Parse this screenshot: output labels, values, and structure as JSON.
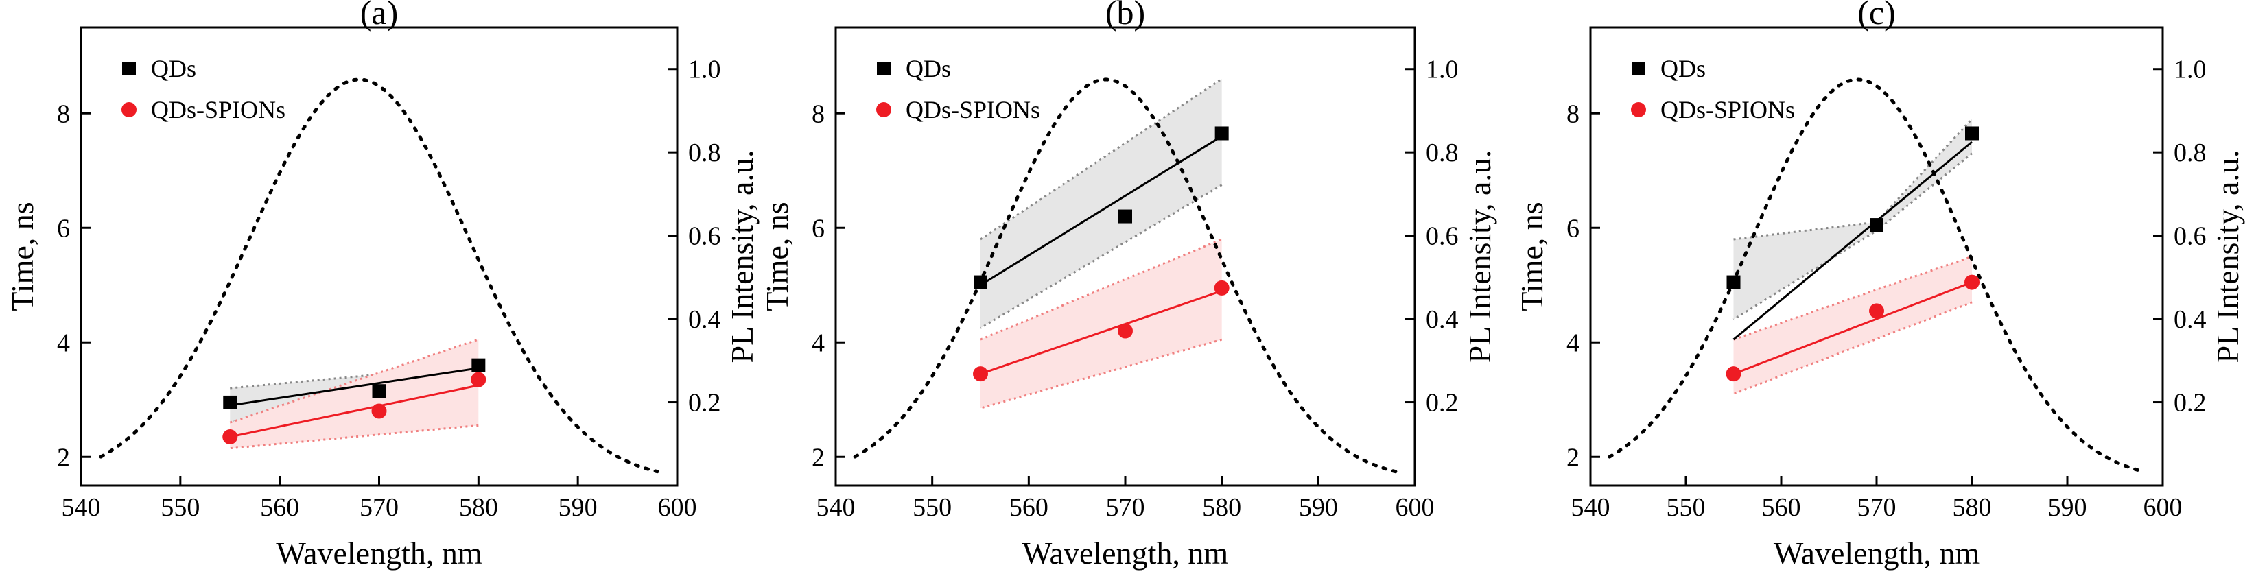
{
  "chart_data": [
    {
      "type": "line",
      "title": "(a)",
      "xlabel": "Wavelength, nm",
      "ylabel": "Time, ns",
      "y2label": "PL Intensity, a.u.",
      "xlim": [
        540,
        600
      ],
      "ylim": [
        1.5,
        9.5
      ],
      "y2lim": [
        0,
        1.1
      ],
      "xticks": [
        540,
        550,
        560,
        570,
        580,
        590,
        600
      ],
      "yticks": [
        2,
        4,
        6,
        8
      ],
      "y2ticks": [
        0.2,
        0.4,
        0.6,
        0.8,
        1.0
      ],
      "xtick_labels": [
        "540",
        "550",
        "560",
        "570",
        "580",
        "590",
        "600"
      ],
      "ytick_labels": [
        "2",
        "4",
        "6",
        "8"
      ],
      "y2tick_labels": [
        "0.2",
        "0.4",
        "0.6",
        "0.8",
        "1.0"
      ],
      "legend": [
        "QDs",
        "QDs-SPIONs"
      ],
      "legend_position": "top-left",
      "series": [
        {
          "name": "QDs",
          "x": [
            555,
            570,
            580
          ],
          "values": [
            2.95,
            3.15,
            3.6
          ],
          "fit": [
            2.9,
            3.55
          ],
          "band_upper": [
            3.2,
            3.6
          ],
          "band_lower": [
            2.6,
            3.35
          ],
          "color": "#000000",
          "band_color": "#e6e6e6",
          "band_edge": "#888888"
        },
        {
          "name": "QDs-SPIONs",
          "x": [
            555,
            570,
            580
          ],
          "values": [
            2.35,
            2.8,
            3.35
          ],
          "fit": [
            2.35,
            3.25
          ],
          "band_upper": [
            2.6,
            4.05
          ],
          "band_lower": [
            2.15,
            2.55
          ],
          "color": "#ee1c24",
          "band_color": "#fde3e3",
          "band_edge": "#f08080"
        }
      ],
      "pl_curve": {
        "name": "PL Intensity",
        "peak_x": 568,
        "peak": 0.965,
        "width": 11,
        "base": 0.01,
        "x_range": [
          542,
          598
        ]
      }
    },
    {
      "type": "line",
      "title": "(b)",
      "xlabel": "Wavelength, nm",
      "ylabel": "Time, ns",
      "y2label": "PL Intensity, a.u.",
      "xlim": [
        540,
        600
      ],
      "ylim": [
        1.5,
        9.5
      ],
      "y2lim": [
        0,
        1.1
      ],
      "xticks": [
        540,
        550,
        560,
        570,
        580,
        590,
        600
      ],
      "yticks": [
        2,
        4,
        6,
        8
      ],
      "y2ticks": [
        0.2,
        0.4,
        0.6,
        0.8,
        1.0
      ],
      "xtick_labels": [
        "540",
        "550",
        "560",
        "570",
        "580",
        "590",
        "600"
      ],
      "ytick_labels": [
        "2",
        "4",
        "6",
        "8"
      ],
      "y2tick_labels": [
        "0.2",
        "0.4",
        "0.6",
        "0.8",
        "1.0"
      ],
      "legend": [
        "QDs",
        "QDs-SPIONs"
      ],
      "legend_position": "top-left",
      "series": [
        {
          "name": "QDs",
          "x": [
            555,
            570,
            580
          ],
          "values": [
            5.05,
            6.2,
            7.65
          ],
          "fit": [
            5.0,
            7.6
          ],
          "band_upper": [
            5.8,
            8.6
          ],
          "band_lower": [
            4.25,
            6.75
          ],
          "color": "#000000",
          "band_color": "#e6e6e6",
          "band_edge": "#888888"
        },
        {
          "name": "QDs-SPIONs",
          "x": [
            555,
            570,
            580
          ],
          "values": [
            3.45,
            4.2,
            4.95
          ],
          "fit": [
            3.45,
            4.9
          ],
          "band_upper": [
            4.05,
            5.8
          ],
          "band_lower": [
            2.85,
            4.05
          ],
          "color": "#ee1c24",
          "band_color": "#fde3e3",
          "band_edge": "#f08080"
        }
      ],
      "pl_curve": {
        "name": "PL Intensity",
        "peak_x": 568,
        "peak": 0.965,
        "width": 11,
        "base": 0.01,
        "x_range": [
          542,
          598
        ]
      }
    },
    {
      "type": "line",
      "title": "(c)",
      "xlabel": "Wavelength, nm",
      "ylabel": "Time, ns",
      "y2label": "PL Intensity, a.u.",
      "xlim": [
        540,
        600
      ],
      "ylim": [
        1.5,
        9.5
      ],
      "y2lim": [
        0,
        1.1
      ],
      "xticks": [
        540,
        550,
        560,
        570,
        580,
        590,
        600
      ],
      "yticks": [
        2,
        4,
        6,
        8
      ],
      "y2ticks": [
        0.2,
        0.4,
        0.6,
        0.8,
        1.0
      ],
      "xtick_labels": [
        "540",
        "550",
        "560",
        "570",
        "580",
        "590",
        "600"
      ],
      "ytick_labels": [
        "2",
        "4",
        "6",
        "8"
      ],
      "y2tick_labels": [
        "0.2",
        "0.4",
        "0.6",
        "0.8",
        "1.0"
      ],
      "legend": [
        "QDs",
        "QDs-SPIONs"
      ],
      "legend_position": "top-left",
      "series": [
        {
          "name": "QDs",
          "x": [
            555,
            570,
            580
          ],
          "values": [
            5.05,
            6.05,
            7.65
          ],
          "fit": [
            4.05,
            7.5
          ],
          "band_upper": [
            5.8,
            7.9
          ],
          "band_lower": [
            4.4,
            7.3
          ],
          "band_mid": [
            6.1,
            5.95
          ],
          "color": "#000000",
          "band_color": "#e6e6e6",
          "band_edge": "#888888"
        },
        {
          "name": "QDs-SPIONs",
          "x": [
            555,
            570,
            580
          ],
          "values": [
            3.45,
            4.55,
            5.05
          ],
          "fit": [
            3.45,
            5.05
          ],
          "band_upper": [
            4.05,
            5.5
          ],
          "band_lower": [
            3.1,
            4.7
          ],
          "color": "#ee1c24",
          "band_color": "#fde3e3",
          "band_edge": "#f08080"
        }
      ],
      "pl_curve": {
        "name": "PL Intensity",
        "peak_x": 568,
        "peak": 0.965,
        "width": 11,
        "base": 0.01,
        "x_range": [
          542,
          598
        ]
      }
    }
  ]
}
